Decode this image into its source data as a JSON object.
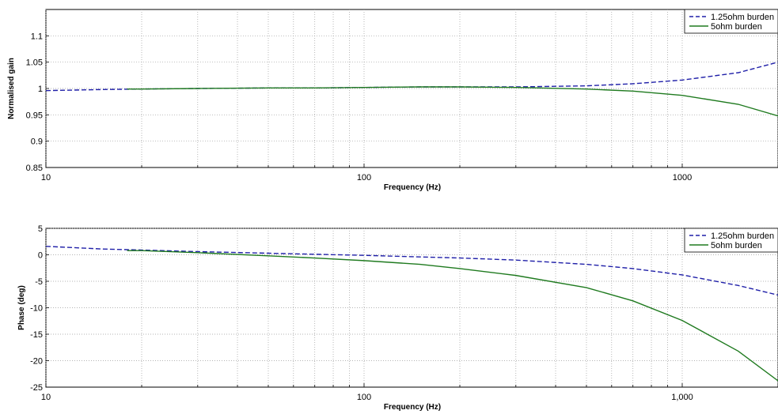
{
  "chart_data": [
    {
      "type": "line",
      "title": "",
      "xlabel": "Frequency (Hz)",
      "ylabel": "Normalised gain",
      "xscale": "log",
      "xlim": [
        10,
        2000
      ],
      "ylim": [
        0.85,
        1.15
      ],
      "x_ticks": [
        10,
        100,
        1000
      ],
      "x_tick_labels": [
        "10",
        "100",
        "1000"
      ],
      "y_ticks": [
        0.85,
        0.9,
        0.95,
        1,
        1.05,
        1.1
      ],
      "y_tick_labels": [
        "0.85",
        "0.9",
        "0.95",
        "1",
        "1.05",
        "1.1"
      ],
      "grid": true,
      "legend_position": "top-right",
      "x": [
        10,
        15,
        20,
        30,
        50,
        70,
        100,
        150,
        200,
        300,
        500,
        700,
        1000,
        1500,
        2000
      ],
      "series": [
        {
          "name": "1.25ohm burden",
          "style": "dashed",
          "color": "#1f1fa8",
          "values": [
            0.996,
            0.998,
            0.999,
            1.0,
            1.001,
            1.001,
            1.002,
            1.003,
            1.003,
            1.003,
            1.005,
            1.009,
            1.016,
            1.03,
            1.05
          ]
        },
        {
          "name": "5ohm burden",
          "style": "solid",
          "color": "#1f7a1f",
          "x_start": 18,
          "values": [
            null,
            null,
            0.999,
            1.0,
            1.001,
            1.001,
            1.002,
            1.003,
            1.003,
            1.002,
            0.999,
            0.995,
            0.987,
            0.97,
            0.948
          ]
        }
      ]
    },
    {
      "type": "line",
      "title": "",
      "xlabel": "Frequency (Hz)",
      "ylabel": "Phase (deg)",
      "xscale": "log",
      "xlim": [
        10,
        2000
      ],
      "ylim": [
        -25,
        5
      ],
      "x_ticks": [
        10,
        100,
        1000
      ],
      "x_tick_labels": [
        "10",
        "100",
        "1,000"
      ],
      "y_ticks": [
        -25,
        -20,
        -15,
        -10,
        -5,
        0,
        5
      ],
      "y_tick_labels": [
        "-25",
        "-20",
        "-15",
        "-10",
        "-5",
        "0",
        "5"
      ],
      "grid": true,
      "legend_position": "top-right",
      "x": [
        10,
        15,
        20,
        30,
        50,
        70,
        100,
        150,
        200,
        300,
        500,
        700,
        1000,
        1500,
        2000
      ],
      "series": [
        {
          "name": "1.25ohm burden",
          "style": "dashed",
          "color": "#1f1fa8",
          "values": [
            1.6,
            1.1,
            0.9,
            0.6,
            0.3,
            0.1,
            -0.1,
            -0.4,
            -0.6,
            -1.0,
            -1.8,
            -2.6,
            -3.8,
            -5.8,
            -7.6
          ]
        },
        {
          "name": "5ohm burden",
          "style": "solid",
          "color": "#1f7a1f",
          "x_start": 18,
          "values": [
            null,
            null,
            0.8,
            0.4,
            -0.2,
            -0.6,
            -1.1,
            -1.8,
            -2.6,
            -3.9,
            -6.2,
            -8.7,
            -12.4,
            -18.2,
            -23.8
          ]
        }
      ]
    }
  ]
}
